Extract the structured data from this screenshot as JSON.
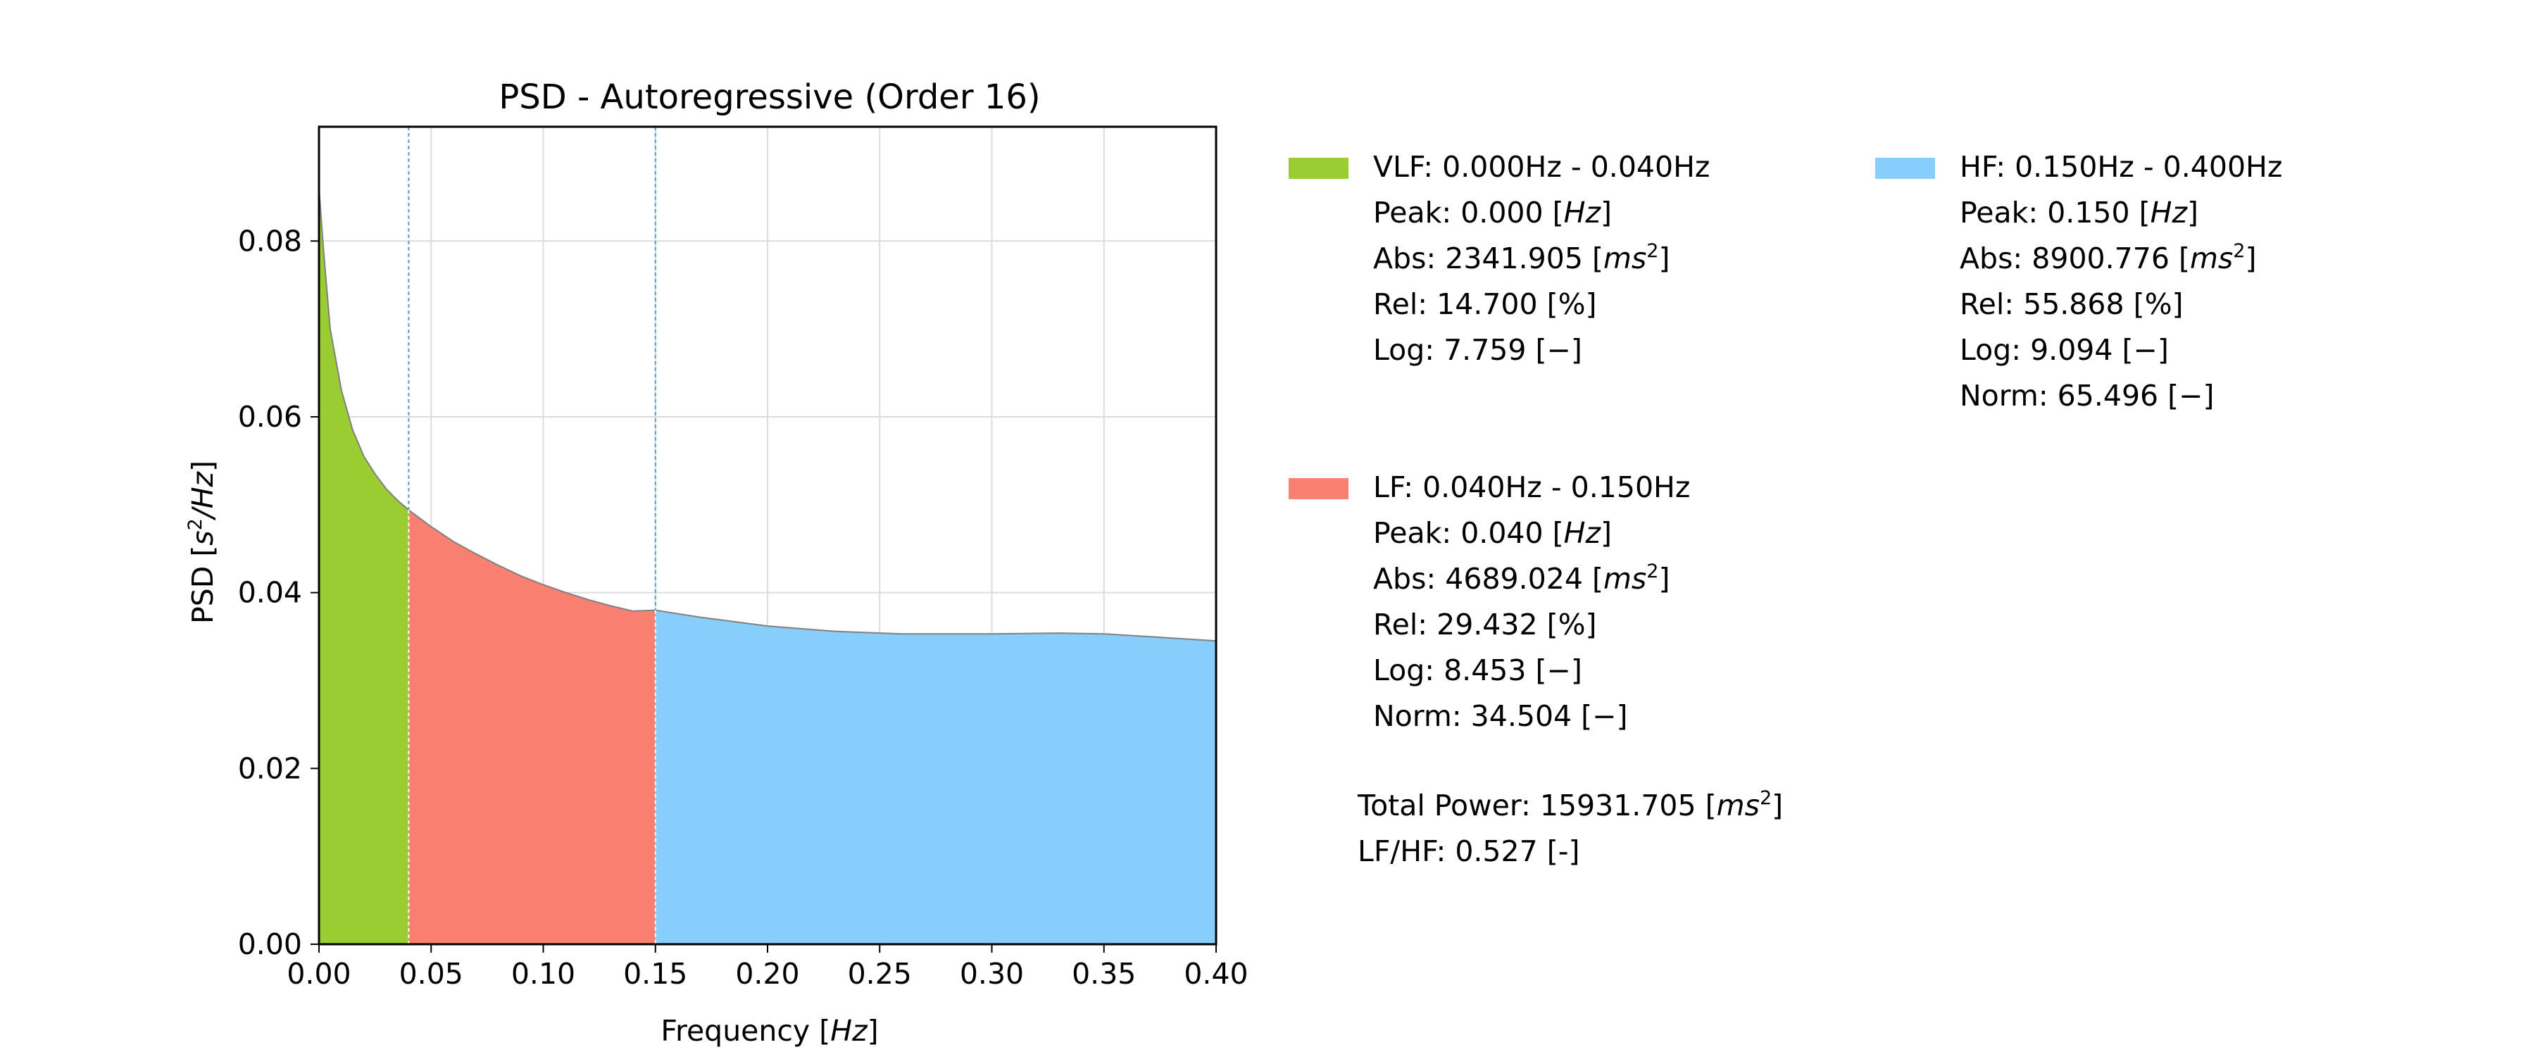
{
  "chart_data": {
    "type": "area",
    "title": "PSD - Autoregressive (Order 16)",
    "xlabel": "Frequency",
    "xlabel_unit": "Hz",
    "ylabel": "PSD",
    "ylabel_unit_parts": [
      "s",
      "2",
      "/Hz"
    ],
    "xlim": [
      0.0,
      0.4
    ],
    "ylim": [
      0.0,
      0.093
    ],
    "grid": true,
    "x_ticks": [
      0.0,
      0.05,
      0.1,
      0.15,
      0.2,
      0.25,
      0.3,
      0.35,
      0.4
    ],
    "x_tick_labels": [
      "0.00",
      "0.05",
      "0.10",
      "0.15",
      "0.20",
      "0.25",
      "0.30",
      "0.35",
      "0.40"
    ],
    "y_ticks": [
      0.0,
      0.02,
      0.04,
      0.06,
      0.08
    ],
    "y_tick_labels": [
      "0.00",
      "0.02",
      "0.04",
      "0.06",
      "0.08"
    ],
    "band_boundaries": [
      0.04,
      0.15
    ],
    "x": [
      0.0,
      0.002,
      0.005,
      0.01,
      0.015,
      0.02,
      0.025,
      0.03,
      0.035,
      0.04,
      0.05,
      0.06,
      0.07,
      0.08,
      0.09,
      0.1,
      0.11,
      0.12,
      0.13,
      0.14,
      0.15,
      0.17,
      0.2,
      0.23,
      0.26,
      0.3,
      0.33,
      0.35,
      0.37,
      0.4
    ],
    "y": [
      0.086,
      0.079,
      0.07,
      0.063,
      0.0585,
      0.0555,
      0.0535,
      0.0518,
      0.0505,
      0.0494,
      0.0475,
      0.0458,
      0.0444,
      0.0431,
      0.0419,
      0.0409,
      0.04,
      0.0392,
      0.0385,
      0.0379,
      0.038,
      0.0372,
      0.0362,
      0.0356,
      0.0353,
      0.0353,
      0.0354,
      0.0353,
      0.035,
      0.0345
    ],
    "bands": [
      {
        "name": "VLF",
        "range": [
          0.0,
          0.04
        ],
        "color": "#9acd32"
      },
      {
        "name": "LF",
        "range": [
          0.04,
          0.15
        ],
        "color": "#fa8072"
      },
      {
        "name": "HF",
        "range": [
          0.15,
          0.4
        ],
        "color": "#87cefa"
      }
    ]
  },
  "legend": {
    "vlf": {
      "color": "#9acd32",
      "header": "VLF: 0.000Hz - 0.040Hz",
      "peak_prefix": "Peak: 0.000 [",
      "peak_unit": "Hz",
      "peak_suffix": "]",
      "abs_prefix": "Abs:  2341.905 [",
      "abs_unit": "ms",
      "abs_sup": "2",
      "abs_suffix": "]",
      "rel": "Rel:  14.700 [%]",
      "log": "Log:  7.759 [−]"
    },
    "lf": {
      "color": "#fa8072",
      "header": "LF: 0.040Hz - 0.150Hz",
      "peak_prefix": "Peak: 0.040 [",
      "peak_unit": "Hz",
      "peak_suffix": "]",
      "abs_prefix": "Abs:  4689.024 [",
      "abs_unit": "ms",
      "abs_sup": "2",
      "abs_suffix": "]",
      "rel": "Rel:  29.432 [%]",
      "log": "Log:  8.453 [−]",
      "norm": "Norm: 34.504 [−]"
    },
    "hf": {
      "color": "#87cefa",
      "header": "HF: 0.150Hz - 0.400Hz",
      "peak_prefix": "Peak: 0.150 [",
      "peak_unit": "Hz",
      "peak_suffix": "]",
      "abs_prefix": "Abs:  8900.776 [",
      "abs_unit": "ms",
      "abs_sup": "2",
      "abs_suffix": "]",
      "rel": "Rel:  55.868 [%]",
      "log": "Log:  9.094 [−]",
      "norm": "Norm: 65.496 [−]"
    },
    "total_power_prefix": "Total Power: 15931.705 [",
    "total_power_unit": "ms",
    "total_power_sup": "2",
    "total_power_suffix": "]",
    "lf_hf": "LF/HF: 0.527 [-]"
  }
}
